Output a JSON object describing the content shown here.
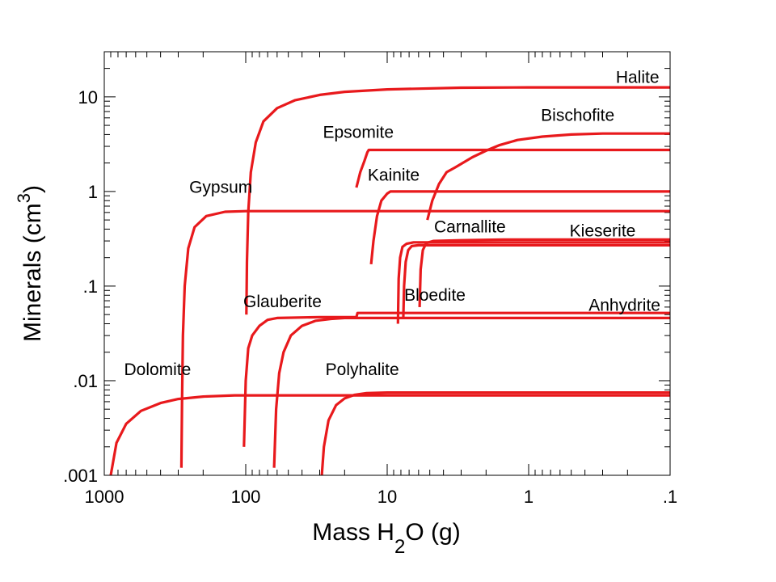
{
  "chart_data": {
    "type": "line",
    "xscale": "log",
    "yscale": "log",
    "x_reversed": true,
    "xlim": [
      1000,
      0.1
    ],
    "ylim": [
      0.001,
      30
    ],
    "xlabel_parts": [
      "Mass H",
      "2",
      "O (g)"
    ],
    "ylabel_parts": [
      "Minerals (cm",
      "3",
      ")"
    ],
    "xticks": [
      {
        "value": 1000,
        "label": "1000"
      },
      {
        "value": 100,
        "label": "100"
      },
      {
        "value": 10,
        "label": "10"
      },
      {
        "value": 1,
        "label": "1"
      },
      {
        "value": 0.1,
        "label": ".1"
      }
    ],
    "yticks": [
      {
        "value": 10,
        "label": "10"
      },
      {
        "value": 1,
        "label": "1"
      },
      {
        "value": 0.1,
        "label": ".1"
      },
      {
        "value": 0.01,
        "label": ".01"
      },
      {
        "value": 0.001,
        "label": ".001"
      }
    ],
    "line_color": "#e8191c",
    "series": [
      {
        "name": "Dolomite",
        "label_at": [
          420,
          0.0115
        ],
        "points": [
          [
            900,
            0.001
          ],
          [
            820,
            0.0022
          ],
          [
            700,
            0.0035
          ],
          [
            550,
            0.0048
          ],
          [
            400,
            0.0058
          ],
          [
            300,
            0.0064
          ],
          [
            200,
            0.0068
          ],
          [
            120,
            0.007
          ],
          [
            100,
            0.007
          ],
          [
            0.1,
            0.007
          ]
        ]
      },
      {
        "name": "Gypsum",
        "label_at": [
          150,
          0.97
        ],
        "points": [
          [
            285,
            0.0012
          ],
          [
            282,
            0.006
          ],
          [
            278,
            0.03
          ],
          [
            270,
            0.1
          ],
          [
            255,
            0.25
          ],
          [
            230,
            0.42
          ],
          [
            190,
            0.55
          ],
          [
            140,
            0.61
          ],
          [
            100,
            0.62
          ],
          [
            0.1,
            0.62
          ]
        ]
      },
      {
        "name": "Halite",
        "label_at": [
          0.17,
          14
        ],
        "points": [
          [
            99,
            0.05
          ],
          [
            98,
            0.18
          ],
          [
            96,
            0.6
          ],
          [
            92,
            1.6
          ],
          [
            85,
            3.3
          ],
          [
            75,
            5.5
          ],
          [
            60,
            7.6
          ],
          [
            45,
            9.2
          ],
          [
            30,
            10.5
          ],
          [
            20,
            11.3
          ],
          [
            10,
            12
          ],
          [
            3,
            12.5
          ],
          [
            1,
            12.6
          ],
          [
            0.1,
            12.6
          ]
        ]
      },
      {
        "name": "Glauberite",
        "label_at": [
          55,
          0.06
        ],
        "points": [
          [
            103,
            0.002
          ],
          [
            100,
            0.01
          ],
          [
            96,
            0.022
          ],
          [
            90,
            0.03
          ],
          [
            80,
            0.038
          ],
          [
            70,
            0.044
          ],
          [
            60,
            0.046
          ],
          [
            30,
            0.047
          ],
          [
            17,
            0.047
          ],
          [
            16.5,
            0.047
          ],
          [
            16.2,
            0.052
          ],
          [
            16,
            0.052
          ],
          [
            0.1,
            0.052
          ]
        ]
      },
      {
        "name": "Anhydrite",
        "label_at": [
          0.21,
          0.055
        ],
        "points": [
          [
            63,
            0.0012
          ],
          [
            61,
            0.005
          ],
          [
            58,
            0.012
          ],
          [
            54,
            0.02
          ],
          [
            48,
            0.03
          ],
          [
            40,
            0.038
          ],
          [
            32,
            0.043
          ],
          [
            25,
            0.045
          ],
          [
            20,
            0.046
          ],
          [
            8,
            0.046
          ],
          [
            0.1,
            0.046
          ]
        ]
      },
      {
        "name": "Polyhalite",
        "label_at": [
          15,
          0.0115
        ],
        "points": [
          [
            29,
            0.0009
          ],
          [
            28,
            0.002
          ],
          [
            26,
            0.0038
          ],
          [
            23,
            0.0055
          ],
          [
            20,
            0.0065
          ],
          [
            17,
            0.0071
          ],
          [
            14,
            0.0074
          ],
          [
            10,
            0.0075
          ],
          [
            0.1,
            0.0075
          ]
        ]
      },
      {
        "name": "Epsomite",
        "label_at": [
          16,
          3.7
        ],
        "points": [
          [
            16.5,
            1.1
          ],
          [
            15.5,
            1.6
          ],
          [
            14.5,
            2.1
          ],
          [
            13.8,
            2.6
          ],
          [
            13.5,
            2.75
          ],
          [
            10,
            2.75
          ],
          [
            0.1,
            2.75
          ]
        ]
      },
      {
        "name": "Kainite",
        "label_at": [
          9,
          1.3
        ],
        "points": [
          [
            13,
            0.17
          ],
          [
            12.5,
            0.3
          ],
          [
            11.8,
            0.55
          ],
          [
            11,
            0.8
          ],
          [
            10,
            0.95
          ],
          [
            9.5,
            1.0
          ],
          [
            0.1,
            1.0
          ]
        ]
      },
      {
        "name": "Bloedite",
        "label_at": [
          4.6,
          0.07
        ],
        "points": [
          [
            8.4,
            0.04
          ],
          [
            8.3,
            0.12
          ],
          [
            8.1,
            0.2
          ],
          [
            7.8,
            0.26
          ],
          [
            7.3,
            0.28
          ],
          [
            6.5,
            0.29
          ],
          [
            4,
            0.29
          ],
          [
            0.1,
            0.29
          ]
        ]
      },
      {
        "name": "Kieserite",
        "label_at": [
          0.3,
          0.335
        ],
        "points": [
          [
            7.7,
            0.045
          ],
          [
            7.6,
            0.1
          ],
          [
            7.4,
            0.18
          ],
          [
            7.1,
            0.24
          ],
          [
            6.7,
            0.265
          ],
          [
            6,
            0.27
          ],
          [
            4,
            0.27
          ],
          [
            0.1,
            0.27
          ]
        ]
      },
      {
        "name": "Carnallite",
        "label_at": [
          2.6,
          0.37
        ],
        "points": [
          [
            5.9,
            0.06
          ],
          [
            5.8,
            0.15
          ],
          [
            5.6,
            0.24
          ],
          [
            5.3,
            0.285
          ],
          [
            4.7,
            0.3
          ],
          [
            3,
            0.305
          ],
          [
            1.5,
            0.31
          ],
          [
            0.5,
            0.31
          ],
          [
            0.1,
            0.31
          ]
        ]
      },
      {
        "name": "Bischofite",
        "label_at": [
          0.45,
          5.6
        ],
        "points": [
          [
            5.2,
            0.5
          ],
          [
            4.8,
            0.8
          ],
          [
            4.3,
            1.2
          ],
          [
            3.8,
            1.6
          ],
          [
            3.3,
            1.8
          ],
          [
            2.5,
            2.3
          ],
          [
            2,
            2.7
          ],
          [
            1.6,
            3.1
          ],
          [
            1.2,
            3.5
          ],
          [
            0.8,
            3.8
          ],
          [
            0.5,
            4.0
          ],
          [
            0.3,
            4.1
          ],
          [
            0.1,
            4.1
          ]
        ]
      }
    ]
  }
}
